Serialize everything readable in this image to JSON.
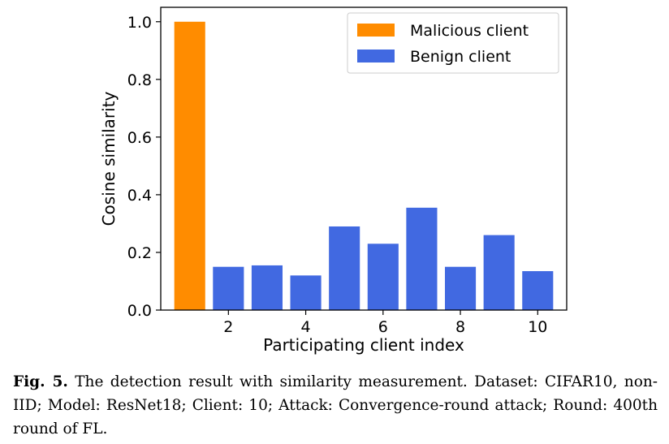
{
  "chart_data": {
    "type": "bar",
    "categories": [
      1,
      2,
      3,
      4,
      5,
      6,
      7,
      8,
      9,
      10
    ],
    "series": [
      {
        "name": "Malicious client",
        "color": "#ff8c00",
        "x": [
          1
        ],
        "values": [
          1.0
        ]
      },
      {
        "name": "Benign client",
        "color": "#4169e1",
        "x": [
          2,
          3,
          4,
          5,
          6,
          7,
          8,
          9,
          10
        ],
        "values": [
          0.15,
          0.155,
          0.12,
          0.29,
          0.23,
          0.355,
          0.15,
          0.26,
          0.135
        ]
      }
    ],
    "xlabel": "Participating client index",
    "ylabel": "Cosine similarity",
    "xticks": [
      2,
      4,
      6,
      8,
      10
    ],
    "yticks": [
      0.0,
      0.2,
      0.4,
      0.6,
      0.8,
      1.0
    ],
    "ytick_labels": [
      "0.0",
      "0.2",
      "0.4",
      "0.6",
      "0.8",
      "1.0"
    ],
    "ylim": [
      0,
      1.05
    ],
    "xlim": [
      0.25,
      10.75
    ],
    "grid": false,
    "legend_position": "top-right"
  },
  "caption": {
    "label": "Fig. 5.",
    "text": "The detection result with similarity measurement. Dataset: CIFAR10, non-IID; Model: ResNet18; Client: 10; Attack: Convergence-round attack; Round: 400th round of FL."
  }
}
